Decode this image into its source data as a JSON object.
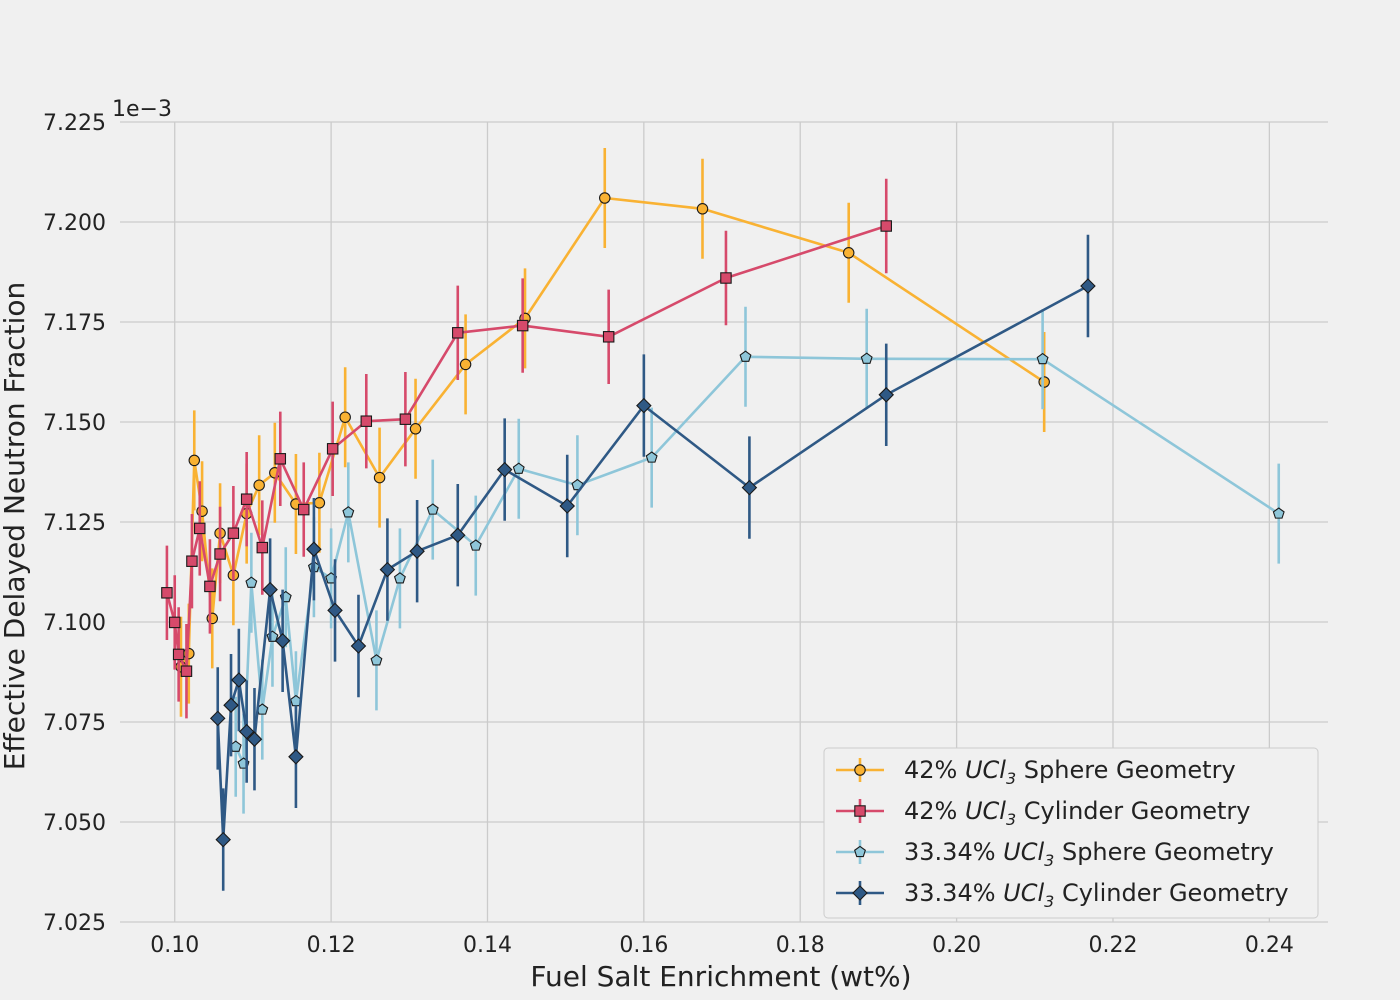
{
  "chart_data": {
    "type": "line",
    "xlabel": "Fuel Salt Enrichment (wt%)",
    "ylabel": "Effective Delayed Neutron Fraction",
    "offset_label": "1e−3",
    "xlim": [
      0.093,
      0.2475
    ],
    "ylim": [
      7.025,
      7.225
    ],
    "xticks": [
      0.1,
      0.12,
      0.14,
      0.16,
      0.18,
      0.2,
      0.22,
      0.24
    ],
    "xtick_labels": [
      "0.10",
      "0.12",
      "0.14",
      "0.16",
      "0.18",
      "0.20",
      "0.22",
      "0.24"
    ],
    "yticks": [
      7.025,
      7.05,
      7.075,
      7.1,
      7.125,
      7.15,
      7.175,
      7.2,
      7.225
    ],
    "ytick_labels": [
      "7.025",
      "7.050",
      "7.075",
      "7.100",
      "7.125",
      "7.150",
      "7.175",
      "7.200",
      "7.225"
    ],
    "grid": true,
    "legend_position": "bottom-right",
    "series": [
      {
        "name_prefix": "42% ",
        "name_formula": "UCl",
        "name_subscript": "3",
        "name_suffix": " Sphere Geometry",
        "color": "#f9b233",
        "marker": "circle",
        "x": [
          0.1008,
          0.1018,
          0.1025,
          0.1035,
          0.1048,
          0.1058,
          0.1075,
          0.1092,
          0.1108,
          0.1128,
          0.1155,
          0.1185,
          0.1218,
          0.1262,
          0.1308,
          0.1372,
          0.1448,
          0.155,
          0.1675,
          0.1862,
          0.2112
        ],
        "y": [
          7.0888,
          7.0921,
          7.1404,
          7.1277,
          7.1009,
          7.1222,
          7.1117,
          7.1271,
          7.1342,
          7.1373,
          7.1295,
          7.1298,
          7.1512,
          7.1361,
          7.1483,
          7.1644,
          7.1759,
          7.206,
          7.2033,
          7.1923,
          7.16
        ],
        "err": 0.0125
      },
      {
        "name_prefix": "42% ",
        "name_formula": "UCl",
        "name_subscript": "3",
        "name_suffix": " Cylinder Geometry",
        "color": "#d64a6b",
        "marker": "square",
        "x": [
          0.099,
          0.1,
          0.1005,
          0.1015,
          0.1022,
          0.1032,
          0.1045,
          0.1058,
          0.1075,
          0.1092,
          0.1112,
          0.1135,
          0.1165,
          0.1202,
          0.1245,
          0.1295,
          0.1362,
          0.1445,
          0.1555,
          0.1705,
          0.191
        ],
        "y": [
          7.1073,
          7.0999,
          7.0919,
          7.0877,
          7.1152,
          7.1234,
          7.1089,
          7.117,
          7.1222,
          7.1307,
          7.1186,
          7.1408,
          7.1281,
          7.1433,
          7.1502,
          7.1507,
          7.1723,
          7.1741,
          7.1713,
          7.186,
          7.199
        ],
        "err": 0.0118
      },
      {
        "name_prefix": "33.34% ",
        "name_formula": "UCl",
        "name_subscript": "3",
        "name_suffix": " Sphere Geometry",
        "color": "#8ec6d9",
        "marker": "pentagon",
        "x": [
          0.1078,
          0.1088,
          0.1098,
          0.1112,
          0.1125,
          0.1142,
          0.1155,
          0.1178,
          0.12,
          0.1222,
          0.1258,
          0.1288,
          0.133,
          0.1385,
          0.144,
          0.1515,
          0.161,
          0.173,
          0.1885,
          0.211,
          0.2412
        ],
        "y": [
          7.0688,
          7.0646,
          7.1098,
          7.0781,
          7.0963,
          7.1062,
          7.0802,
          7.1137,
          7.1109,
          7.1274,
          7.0904,
          7.1109,
          7.1281,
          7.1191,
          7.1383,
          7.1342,
          7.1411,
          7.1663,
          7.1658,
          7.1657,
          7.1271
        ],
        "err": 0.0125
      },
      {
        "name_prefix": "33.34% ",
        "name_formula": "UCl",
        "name_subscript": "3",
        "name_suffix": " Cylinder Geometry",
        "color": "#2f5985",
        "marker": "diamond",
        "x": [
          0.1055,
          0.1062,
          0.1072,
          0.1082,
          0.1092,
          0.1102,
          0.1122,
          0.1138,
          0.1155,
          0.1178,
          0.1205,
          0.1235,
          0.1272,
          0.131,
          0.1362,
          0.1422,
          0.1502,
          0.16,
          0.1735,
          0.191,
          0.2168
        ],
        "y": [
          7.0759,
          7.0456,
          7.0792,
          7.0855,
          7.0726,
          7.0707,
          7.1081,
          7.0953,
          7.0663,
          7.1182,
          7.1029,
          7.094,
          7.1131,
          7.1177,
          7.1217,
          7.1381,
          7.129,
          7.1541,
          7.1336,
          7.1568,
          7.184
        ],
        "err": 0.0128
      }
    ]
  }
}
